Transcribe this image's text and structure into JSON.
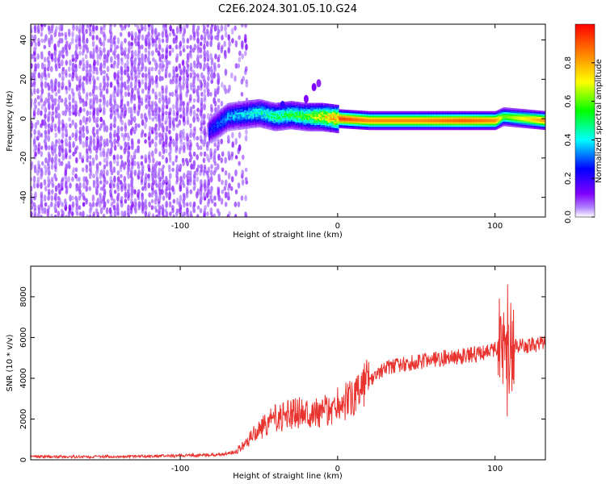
{
  "title": "C2E6.2024.301.05.10.G24",
  "chart_data": [
    {
      "type": "heatmap",
      "xlabel": "Height of straight line (km)",
      "ylabel": "Frequency (Hz)",
      "xlim": [
        -195,
        132
      ],
      "ylim": [
        -50,
        48
      ],
      "x_ticks": [
        -100,
        0,
        100
      ],
      "x_tick_labels": [
        "-100",
        "0",
        "100"
      ],
      "y_ticks": [
        -40,
        -20,
        0,
        20,
        40
      ],
      "y_tick_labels": [
        "-40",
        "-20",
        "0",
        "20",
        "40"
      ],
      "colorbar": {
        "label": "Normalized spectral amplitude",
        "range": [
          0,
          1
        ],
        "ticks": [
          0.0,
          0.2,
          0.4,
          0.6,
          0.8
        ],
        "tick_labels": [
          "0.0",
          "0.2",
          "0.4",
          "0.6",
          "0.8"
        ],
        "colormap": "rainbow (violet → blue → cyan → green → yellow → red)"
      },
      "features": {
        "noise_region_x": [
          -195,
          -58
        ],
        "noise_amplitude": [
          0.0,
          0.12
        ],
        "signal_ridge": [
          {
            "x": -80,
            "f": -5,
            "amp": 0.3
          },
          {
            "x": -70,
            "f": 1,
            "amp": 0.4
          },
          {
            "x": -60,
            "f": 2,
            "amp": 0.45
          },
          {
            "x": -50,
            "f": 3,
            "amp": 0.5
          },
          {
            "x": -40,
            "f": 1,
            "amp": 0.55
          },
          {
            "x": -30,
            "f": 2,
            "amp": 0.6
          },
          {
            "x": -20,
            "f": 1,
            "amp": 0.65
          },
          {
            "x": -10,
            "f": 1,
            "amp": 0.8
          },
          {
            "x": 0,
            "f": 0,
            "amp": 0.95
          },
          {
            "x": 20,
            "f": -1,
            "amp": 0.85
          },
          {
            "x": 50,
            "f": -1,
            "amp": 0.85
          },
          {
            "x": 80,
            "f": -1,
            "amp": 0.9
          },
          {
            "x": 100,
            "f": -1,
            "amp": 0.85
          },
          {
            "x": 105,
            "f": 1,
            "amp": 0.6
          },
          {
            "x": 132,
            "f": -1,
            "amp": 0.85
          }
        ]
      }
    },
    {
      "type": "line",
      "xlabel": "Height of straight line (km)",
      "ylabel": "SNR (10 * v/v)",
      "xlim": [
        -195,
        132
      ],
      "ylim": [
        0,
        9500
      ],
      "x_ticks": [
        -100,
        0,
        100
      ],
      "x_tick_labels": [
        "-100",
        "0",
        "100"
      ],
      "y_ticks": [
        0,
        2000,
        4000,
        6000,
        8000
      ],
      "y_tick_labels": [
        "0",
        "2000",
        "4000",
        "6000",
        "8000"
      ],
      "color": "#e8332f",
      "series": [
        {
          "x": [
            -195,
            -150,
            -100,
            -75,
            -65,
            -60,
            -50,
            -40,
            -30,
            -20,
            -10,
            0,
            10,
            20,
            30,
            50,
            70,
            90,
            100,
            105,
            108,
            110,
            115,
            120,
            132
          ],
          "y": [
            150,
            150,
            200,
            250,
            400,
            700,
            1500,
            2000,
            2200,
            2500,
            2300,
            2700,
            3000,
            3800,
            4500,
            4800,
            5000,
            5200,
            5400,
            5500,
            5200,
            5500,
            5600,
            5600,
            5700
          ]
        }
      ]
    }
  ]
}
